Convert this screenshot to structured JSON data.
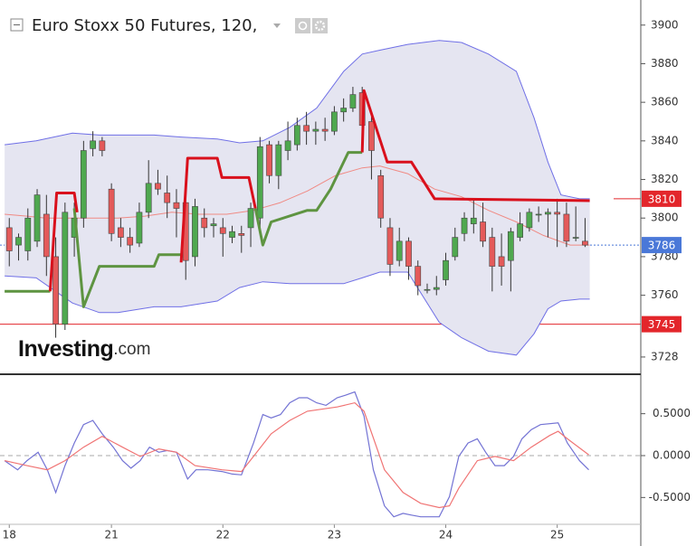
{
  "chart_data": [
    {
      "type": "candlestick",
      "title": "Euro Stoxx 50 Futures, 120,",
      "watermark": {
        "brand": "Investing",
        "suffix": ".com"
      },
      "xlim": [
        -1,
        68
      ],
      "ylim": [
        3720,
        3913
      ],
      "yticks": [
        3900,
        3880,
        3860,
        3840,
        3820,
        3800,
        3780,
        3760,
        3728
      ],
      "up_color": "#4fa84f",
      "down_color": "#e45a5a",
      "wick_color": "#333333",
      "open": [
        3795,
        3786,
        3783,
        3788,
        3802,
        3780,
        3745,
        3790,
        3800,
        3836,
        3840,
        3815,
        3795,
        3790,
        3787,
        3803,
        3818,
        3813,
        3808,
        3808,
        3780,
        3800,
        3796,
        3795,
        3790,
        3792,
        3795,
        3800,
        3838,
        3822,
        3835,
        3838,
        3848,
        3845,
        3846,
        3845,
        3855,
        3857,
        3865,
        3850,
        3822,
        3795,
        3778,
        3788,
        3775,
        3763,
        3763,
        3768,
        3780,
        3792,
        3797,
        3798,
        3790,
        3780,
        3778,
        3790,
        3795,
        3802,
        3802,
        3803,
        3802,
        3790,
        3788
      ],
      "high": [
        3800,
        3792,
        3805,
        3815,
        3812,
        3790,
        3808,
        3808,
        3840,
        3845,
        3842,
        3818,
        3800,
        3795,
        3808,
        3830,
        3825,
        3822,
        3815,
        3812,
        3810,
        3805,
        3800,
        3800,
        3796,
        3796,
        3808,
        3842,
        3840,
        3840,
        3850,
        3852,
        3855,
        3850,
        3852,
        3858,
        3862,
        3868,
        3868,
        3855,
        3825,
        3800,
        3795,
        3790,
        3778,
        3766,
        3770,
        3782,
        3795,
        3803,
        3810,
        3808,
        3795,
        3792,
        3795,
        3803,
        3805,
        3806,
        3805,
        3810,
        3808,
        3806,
        3800
      ],
      "low": [
        3775,
        3778,
        3778,
        3785,
        3770,
        3738,
        3742,
        3780,
        3795,
        3832,
        3832,
        3788,
        3785,
        3782,
        3785,
        3800,
        3812,
        3800,
        3790,
        3768,
        3775,
        3790,
        3790,
        3780,
        3787,
        3782,
        3785,
        3795,
        3818,
        3815,
        3830,
        3835,
        3838,
        3838,
        3840,
        3843,
        3850,
        3855,
        3840,
        3820,
        3795,
        3770,
        3775,
        3768,
        3760,
        3761,
        3760,
        3765,
        3778,
        3788,
        3792,
        3785,
        3762,
        3765,
        3762,
        3788,
        3793,
        3798,
        3790,
        3785,
        3785,
        3788,
        3785
      ],
      "close": [
        3783,
        3790,
        3800,
        3812,
        3780,
        3745,
        3803,
        3800,
        3835,
        3840,
        3835,
        3792,
        3790,
        3786,
        3803,
        3818,
        3815,
        3808,
        3805,
        3778,
        3806,
        3795,
        3797,
        3792,
        3793,
        3791,
        3805,
        3837,
        3822,
        3838,
        3840,
        3848,
        3845,
        3846,
        3845,
        3855,
        3857,
        3864,
        3848,
        3835,
        3800,
        3776,
        3788,
        3775,
        3765,
        3763,
        3764,
        3778,
        3790,
        3800,
        3800,
        3788,
        3775,
        3775,
        3793,
        3797,
        3803,
        3802,
        3803,
        3802,
        3788,
        3790,
        3786
      ],
      "overlays": [
        {
          "kind": "band",
          "color": "#6f6fe6",
          "fill": "#e5e5f1",
          "x": [
            -0.5,
            2.9,
            6.8,
            9.7,
            11.7,
            15.6,
            18.5,
            22.4,
            24.8,
            27.3,
            30.2,
            33.1,
            36.0,
            38.0,
            39.9,
            42.9,
            46.3,
            48.7,
            51.6,
            54.6,
            56.5,
            58.0,
            59.4,
            61.4,
            62.5
          ],
          "upper": [
            3838,
            3840,
            3844,
            3843,
            3843,
            3843,
            3842,
            3841,
            3839,
            3840,
            3847,
            3857,
            3876,
            3885,
            3887,
            3890,
            3892,
            3891,
            3885,
            3876,
            3852,
            3829,
            3812,
            3810,
            3810
          ],
          "lower": [
            3770,
            3769,
            3756,
            3751,
            3751,
            3754,
            3754,
            3757,
            3764,
            3767,
            3766,
            3766,
            3766,
            3769,
            3772,
            3772,
            3746,
            3738,
            3731,
            3729,
            3740,
            3753,
            3757,
            3758,
            3758
          ]
        },
        {
          "kind": "line",
          "color": "#f08a84",
          "width": 1,
          "x": [
            -0.5,
            1.9,
            3.9,
            6.0,
            8.7,
            11.7,
            14.6,
            17.5,
            20.4,
            23.4,
            26.3,
            29.2,
            32.1,
            35.1,
            38.0,
            39.9,
            42.9,
            45.8,
            48.7,
            51.6,
            54.6,
            57.5,
            60.4,
            62.5
          ],
          "values": [
            3802,
            3801,
            3800,
            3800,
            3800,
            3800,
            3801,
            3803,
            3802,
            3802,
            3804,
            3808,
            3814,
            3822,
            3826,
            3827,
            3823,
            3815,
            3811,
            3804,
            3798,
            3791,
            3786,
            3786
          ]
        },
        {
          "kind": "line",
          "color": "#5e9441",
          "width": 3,
          "x": [
            -0.5,
            4.4,
            null,
            7.0,
            8.0,
            9.7,
            15.6,
            16.1,
            18.5,
            null,
            26.5,
            27.3,
            28.2,
            32.1,
            33.1,
            34.6,
            36.5,
            38.0
          ],
          "values": [
            3762,
            3762,
            null,
            3805,
            3754,
            3775,
            3775,
            3781,
            3781,
            null,
            3805,
            3786,
            3798,
            3804,
            3804,
            3815,
            3834,
            3834
          ]
        },
        {
          "kind": "line",
          "color": "#d9101c",
          "width": 3,
          "x": [
            4.4,
            5.1,
            7.0,
            7.3,
            null,
            18.5,
            19.2,
            22.4,
            22.9,
            25.8,
            26.5,
            null,
            38.0,
            38.2,
            40.7,
            43.3,
            45.8,
            62.5
          ],
          "values": [
            3762,
            3813,
            3813,
            3803,
            null,
            3777,
            3831,
            3831,
            3821,
            3821,
            3805,
            null,
            3834,
            3866,
            3829,
            3829,
            3810,
            3809
          ]
        }
      ],
      "reference_lines": [
        {
          "value": 3810,
          "color": "#e3262b",
          "style": "segment"
        },
        {
          "value": 3786,
          "color": "#4a78d8",
          "style": "dotted"
        },
        {
          "value": 3745,
          "color": "#e3262b",
          "style": "solid"
        }
      ]
    },
    {
      "type": "line",
      "xlim": [
        -1,
        68
      ],
      "xticks": [
        {
          "value": 0,
          "label": "18"
        },
        {
          "value": 11,
          "label": "21"
        },
        {
          "value": 23,
          "label": "22"
        },
        {
          "value": 35,
          "label": "23"
        },
        {
          "value": 47,
          "label": "24"
        },
        {
          "value": 59,
          "label": "25"
        }
      ],
      "ylim": [
        -0.82,
        0.96
      ],
      "yticks": [
        {
          "value": 0.5,
          "label": "0.5000"
        },
        {
          "value": 0,
          "label": "0.0000"
        },
        {
          "value": -0.5,
          "label": "-0.5000"
        }
      ],
      "zero_line": {
        "value": 0,
        "color": "#aaaaaa"
      },
      "series": [
        {
          "color": "#7373d4",
          "x": [
            -0.5,
            0.9,
            1.9,
            3.1,
            4.1,
            5.0,
            6.0,
            7.0,
            8.0,
            9.0,
            10.0,
            11.2,
            12.2,
            13.1,
            14.1,
            15.1,
            16.1,
            17.0,
            18.0,
            19.2,
            20.1,
            21.4,
            22.9,
            24.0,
            25.0,
            26.3,
            27.3,
            28.2,
            29.2,
            30.2,
            31.2,
            32.1,
            33.1,
            34.1,
            35.3,
            36.2,
            37.2,
            38.2,
            39.2,
            40.4,
            41.4,
            42.4,
            43.3,
            44.3,
            46.3,
            47.4,
            48.4,
            49.4,
            50.4,
            51.3,
            52.3,
            53.3,
            54.3,
            55.2,
            56.2,
            57.2,
            59.1,
            60.1,
            61.4,
            62.4
          ],
          "values": [
            -0.06,
            -0.17,
            -0.06,
            0.04,
            -0.17,
            -0.44,
            -0.12,
            0.15,
            0.37,
            0.42,
            0.26,
            0.1,
            -0.06,
            -0.15,
            -0.06,
            0.1,
            0.04,
            0.06,
            0.04,
            -0.28,
            -0.17,
            -0.17,
            -0.19,
            -0.22,
            -0.23,
            0.15,
            0.49,
            0.45,
            0.49,
            0.63,
            0.69,
            0.69,
            0.63,
            0.6,
            0.69,
            0.72,
            0.76,
            0.47,
            -0.17,
            -0.6,
            -0.73,
            -0.69,
            -0.71,
            -0.73,
            -0.73,
            -0.49,
            -0.01,
            0.15,
            0.2,
            0.04,
            -0.12,
            -0.12,
            -0.01,
            0.2,
            0.31,
            0.37,
            0.39,
            0.15,
            -0.06,
            -0.17
          ]
        },
        {
          "color": "#f07474",
          "x": [
            -0.5,
            1.9,
            4.1,
            6.0,
            8.0,
            10.0,
            12.2,
            14.1,
            16.1,
            18.0,
            20.0,
            22.9,
            25.0,
            26.3,
            28.2,
            30.2,
            32.1,
            35.3,
            37.2,
            38.2,
            40.4,
            42.4,
            44.3,
            46.3,
            47.4,
            48.4,
            50.4,
            52.3,
            54.3,
            56.2,
            58.2,
            59.1,
            60.1,
            62.4
          ],
          "values": [
            -0.06,
            -0.12,
            -0.17,
            -0.06,
            0.1,
            0.23,
            0.1,
            -0.01,
            0.08,
            0.04,
            -0.12,
            -0.17,
            -0.19,
            -0.01,
            0.26,
            0.42,
            0.53,
            0.58,
            0.63,
            0.53,
            -0.17,
            -0.44,
            -0.57,
            -0.62,
            -0.6,
            -0.39,
            -0.06,
            -0.01,
            -0.06,
            0.1,
            0.24,
            0.29,
            0.2,
            0.01
          ]
        }
      ]
    }
  ]
}
